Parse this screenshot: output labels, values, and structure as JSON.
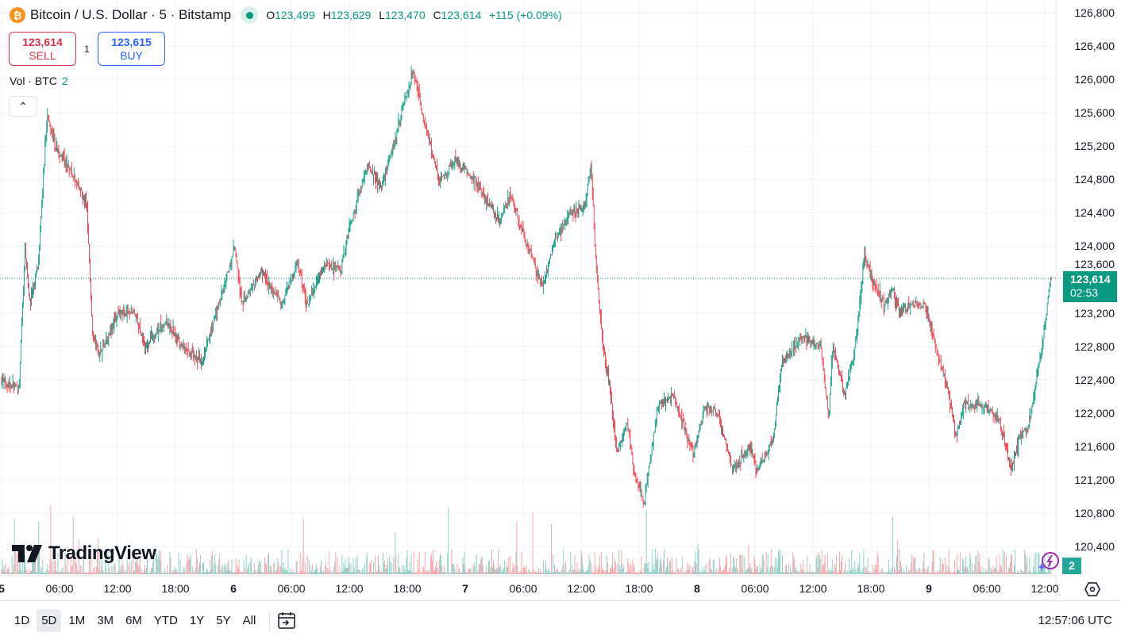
{
  "header": {
    "symbol": "Bitcoin / U.S. Dollar · 5 · Bitstamp",
    "logo_letter": "₿",
    "open_label": "O",
    "open": "123,499",
    "high_label": "H",
    "high": "123,629",
    "low_label": "L",
    "low": "123,470",
    "close_label": "C",
    "close": "123,614",
    "change": "+115 (+0.09%)"
  },
  "trade": {
    "sell_price": "123,614",
    "sell_label": "SELL",
    "quantity": "1",
    "buy_price": "123,615",
    "buy_label": "BUY"
  },
  "volume_legend": {
    "label": "Vol · BTC",
    "value": "2"
  },
  "collapse_icon": "chevron-up-icon",
  "price_tag": {
    "price": "123,614",
    "countdown": "02:53"
  },
  "volume_tag": "2",
  "watermark": "TradingView",
  "bottom": {
    "ranges": [
      "1D",
      "5D",
      "1M",
      "3M",
      "6M",
      "YTD",
      "1Y",
      "5Y",
      "All"
    ],
    "active_range": "5D",
    "clock": "12:57:06 UTC"
  },
  "colors": {
    "up": "#089981",
    "down": "#f23645",
    "vol_up": "#8fd1c7",
    "vol_down": "#f6a9ae"
  },
  "chart_data": {
    "type": "candlestick",
    "interval_minutes": 5,
    "y_ticks": [
      "126,800",
      "126,400",
      "126,000",
      "125,600",
      "125,200",
      "124,800",
      "124,400",
      "124,000",
      "123,600",
      "123,200",
      "122,800",
      "122,400",
      "122,000",
      "121,600",
      "121,200",
      "120,800",
      "120,400"
    ],
    "y_tick_values": [
      126800,
      126400,
      126000,
      125600,
      125200,
      124800,
      124400,
      124000,
      123600,
      123200,
      122800,
      122400,
      122000,
      121600,
      121200,
      120800,
      120400
    ],
    "x_ticks": [
      {
        "label": "5",
        "hour": 0,
        "day": true
      },
      {
        "label": "06:00",
        "hour": 6
      },
      {
        "label": "12:00",
        "hour": 12
      },
      {
        "label": "18:00",
        "hour": 18
      },
      {
        "label": "6",
        "hour": 24,
        "day": true
      },
      {
        "label": "06:00",
        "hour": 30
      },
      {
        "label": "12:00",
        "hour": 36
      },
      {
        "label": "18:00",
        "hour": 42
      },
      {
        "label": "7",
        "hour": 48,
        "day": true
      },
      {
        "label": "06:00",
        "hour": 54
      },
      {
        "label": "12:00",
        "hour": 60
      },
      {
        "label": "18:00",
        "hour": 66
      },
      {
        "label": "8",
        "hour": 72,
        "day": true
      },
      {
        "label": "06:00",
        "hour": 78
      },
      {
        "label": "12:00",
        "hour": 84
      },
      {
        "label": "18:00",
        "hour": 90
      },
      {
        "label": "9",
        "hour": 96,
        "day": true
      },
      {
        "label": "06:00",
        "hour": 102
      },
      {
        "label": "12:00",
        "hour": 108
      }
    ],
    "last_price": 123614,
    "price_path": [
      [
        0,
        122400
      ],
      [
        1.9,
        122300
      ],
      [
        2.5,
        124000
      ],
      [
        3,
        123300
      ],
      [
        3.9,
        123800
      ],
      [
        4.8,
        125600
      ],
      [
        5.6,
        125200
      ],
      [
        7.2,
        124900
      ],
      [
        8.9,
        124500
      ],
      [
        9.5,
        123000
      ],
      [
        10.1,
        122700
      ],
      [
        12.2,
        123200
      ],
      [
        13.8,
        123200
      ],
      [
        15,
        122800
      ],
      [
        17.1,
        123100
      ],
      [
        18.7,
        122800
      ],
      [
        20.8,
        122600
      ],
      [
        22.8,
        123400
      ],
      [
        24.2,
        124000
      ],
      [
        24.9,
        123300
      ],
      [
        27,
        123700
      ],
      [
        29,
        123300
      ],
      [
        30.7,
        123800
      ],
      [
        31.7,
        123300
      ],
      [
        33.5,
        123800
      ],
      [
        35.2,
        123700
      ],
      [
        36,
        124200
      ],
      [
        38,
        125000
      ],
      [
        39.3,
        124700
      ],
      [
        40.9,
        125300
      ],
      [
        41.7,
        125700
      ],
      [
        42.7,
        126100
      ],
      [
        43.8,
        125500
      ],
      [
        45.4,
        124800
      ],
      [
        47.1,
        125000
      ],
      [
        49.1,
        124800
      ],
      [
        50,
        124600
      ],
      [
        51.6,
        124300
      ],
      [
        52.8,
        124600
      ],
      [
        54.5,
        124000
      ],
      [
        56.1,
        123500
      ],
      [
        57.4,
        124100
      ],
      [
        59,
        124400
      ],
      [
        60.5,
        124500
      ],
      [
        61.1,
        125000
      ],
      [
        61.6,
        123800
      ],
      [
        62.3,
        122800
      ],
      [
        63.1,
        122300
      ],
      [
        63.8,
        121500
      ],
      [
        64.8,
        121900
      ],
      [
        65.6,
        121300
      ],
      [
        66.6,
        120900
      ],
      [
        68,
        122100
      ],
      [
        69.7,
        122200
      ],
      [
        71.7,
        121500
      ],
      [
        73,
        122100
      ],
      [
        74.2,
        122000
      ],
      [
        75.8,
        121300
      ],
      [
        77.5,
        121600
      ],
      [
        78.3,
        121300
      ],
      [
        80,
        121700
      ],
      [
        80.8,
        122600
      ],
      [
        82.8,
        122900
      ],
      [
        84.9,
        122800
      ],
      [
        85.7,
        121900
      ],
      [
        86.1,
        122800
      ],
      [
        87.4,
        122200
      ],
      [
        88.6,
        122900
      ],
      [
        89.4,
        123900
      ],
      [
        90.2,
        123600
      ],
      [
        91.5,
        123300
      ],
      [
        92.3,
        123500
      ],
      [
        93.1,
        123200
      ],
      [
        94.3,
        123300
      ],
      [
        95.6,
        123300
      ],
      [
        96.8,
        122800
      ],
      [
        98,
        122300
      ],
      [
        98.9,
        121700
      ],
      [
        99.7,
        122100
      ],
      [
        101.7,
        122100
      ],
      [
        103.4,
        121900
      ],
      [
        104.6,
        121300
      ],
      [
        105.4,
        121700
      ],
      [
        106.3,
        121800
      ],
      [
        107.1,
        122300
      ],
      [
        107.9,
        122900
      ],
      [
        108.7,
        123614
      ]
    ]
  }
}
